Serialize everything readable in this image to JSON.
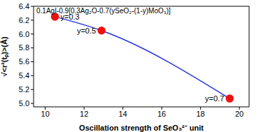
{
  "chart_data": {
    "type": "line",
    "title": "0.1AgI-0.9[0.3Ag₂O-0.7(ySeO₂-(1-y)MoO₃)]",
    "x_label": "Oscillation strength of SeO₃²⁻ unit",
    "y_label": "√<r²(tₚ)>(Å)",
    "series": [
      {
        "color": "#2233dd",
        "marker": "circle",
        "x": [
          10.5,
          12.9,
          19.5
        ],
        "values": [
          6.25,
          6.05,
          5.07
        ],
        "annotations": [
          "y=0.3",
          "y=0.5",
          "y=0.7"
        ]
      }
    ],
    "xlim": [
      9.4,
      20.5
    ],
    "xticks": [
      10,
      12,
      14,
      16,
      18,
      20
    ],
    "ylim": [
      4.95,
      6.4
    ],
    "yticks": [
      {
        "value": 5.0,
        "label": "5.0"
      },
      {
        "value": 5.2,
        "label": "5.2"
      },
      {
        "value": 5.4,
        "label": "5.4"
      },
      {
        "value": 5.6,
        "label": "5.6"
      },
      {
        "value": 5.8,
        "label": "5.8"
      },
      {
        "value": 6.0,
        "label": "6.0"
      },
      {
        "value": 6.2,
        "label": "6.2"
      },
      {
        "value": 6.4,
        "label": "6.4"
      }
    ],
    "grid": false
  }
}
